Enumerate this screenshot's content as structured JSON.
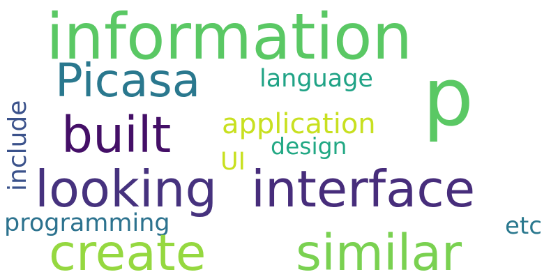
{
  "words": {
    "information": {
      "text": "information",
      "color": "#5ac864"
    },
    "p": {
      "text": "p",
      "color": "#5ac864"
    },
    "picasa": {
      "text": "Picasa",
      "color": "#2a788e"
    },
    "language": {
      "text": "language",
      "color": "#20a386"
    },
    "built": {
      "text": "built",
      "color": "#440f67"
    },
    "application": {
      "text": "application",
      "color": "#c8e020"
    },
    "design": {
      "text": "design",
      "color": "#22a884"
    },
    "ui": {
      "text": "UI",
      "color": "#c8e020"
    },
    "looking": {
      "text": "looking",
      "color": "#46327e"
    },
    "interface": {
      "text": "interface",
      "color": "#472d7b"
    },
    "include": {
      "text": "include",
      "color": "#3b528b"
    },
    "programming": {
      "text": "programming",
      "color": "#2c728e"
    },
    "etc": {
      "text": "etc",
      "color": "#2a788e"
    },
    "create": {
      "text": "create",
      "color": "#95d840"
    },
    "similar": {
      "text": "similar",
      "color": "#7ad151"
    }
  }
}
